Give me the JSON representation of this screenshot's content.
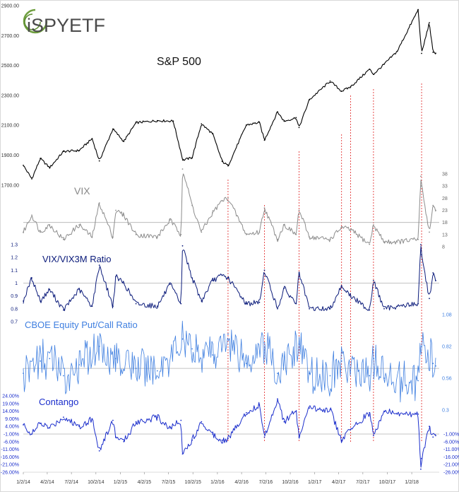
{
  "logo": {
    "text": "iSPYETF"
  },
  "colors": {
    "sp500": "#000000",
    "vix": "#8c8c8c",
    "ratio": "#0a1a7a",
    "putcall": "#3f7fe0",
    "contango": "#1b2ecc",
    "marker": "#e02020",
    "refline": "#b0b0b0"
  },
  "chart_data": {
    "type": "line",
    "x_dates": [
      "1/2/14",
      "4/2/14",
      "7/2/14",
      "10/2/14",
      "1/2/15",
      "4/2/15",
      "7/2/15",
      "10/2/15",
      "1/2/16",
      "4/2/16",
      "7/2/16",
      "10/2/16",
      "1/2/17",
      "4/2/17",
      "7/2/17",
      "10/2/17",
      "1/2/18"
    ],
    "markers": [
      "2/11/16",
      "6/27/16",
      "11/4/16",
      "4/13/17",
      "5/17/17",
      "8/11/17",
      "2/8/18"
    ],
    "panels": [
      {
        "name": "S&P 500",
        "type": "line",
        "y_ticks": [
          "2900.00",
          "2700.00",
          "2500.00",
          "2300.00",
          "2100.00",
          "1900.00",
          "1700.00"
        ],
        "ylim": [
          1600,
          2900
        ],
        "series": [
          {
            "name": "S&P 500",
            "points": [
              [
                "1/2/14",
                1832
              ],
              [
                "2/3/14",
                1742
              ],
              [
                "3/7/14",
                1878
              ],
              [
                "4/11/14",
                1816
              ],
              [
                "6/2/14",
                1925
              ],
              [
                "7/31/14",
                1931
              ],
              [
                "9/18/14",
                2011
              ],
              [
                "10/15/14",
                1862
              ],
              [
                "12/5/14",
                2075
              ],
              [
                "1/15/15",
                1992
              ],
              [
                "3/2/15",
                2117
              ],
              [
                "5/21/15",
                2131
              ],
              [
                "7/20/15",
                2128
              ],
              [
                "8/25/15",
                1867
              ],
              [
                "9/29/15",
                1884
              ],
              [
                "11/3/15",
                2109
              ],
              [
                "12/15/15",
                2043
              ],
              [
                "1/20/16",
                1859
              ],
              [
                "2/11/16",
                1829
              ],
              [
                "4/20/16",
                2102
              ],
              [
                "6/8/16",
                2119
              ],
              [
                "6/27/16",
                2000
              ],
              [
                "8/15/16",
                2190
              ],
              [
                "9/9/16",
                2127
              ],
              [
                "10/24/16",
                2151
              ],
              [
                "11/4/16",
                2085
              ],
              [
                "12/13/16",
                2271
              ],
              [
                "3/1/17",
                2395
              ],
              [
                "4/13/17",
                2328
              ],
              [
                "5/17/17",
                2357
              ],
              [
                "7/27/17",
                2475
              ],
              [
                "8/11/17",
                2441
              ],
              [
                "9/20/17",
                2508
              ],
              [
                "11/8/17",
                2594
              ],
              [
                "1/26/18",
                2873
              ],
              [
                "2/8/18",
                2581
              ],
              [
                "3/9/18",
                2786
              ],
              [
                "3/23/18",
                2588
              ],
              [
                "4/2/18",
                2582
              ]
            ]
          }
        ]
      },
      {
        "name": "VIX",
        "type": "line",
        "y_ticks": [
          "38",
          "33",
          "28",
          "23",
          "18",
          "13",
          "8"
        ],
        "ylim": [
          8,
          38
        ],
        "series": [
          {
            "name": "VIX",
            "points": [
              [
                "1/2/14",
                14
              ],
              [
                "2/3/14",
                21
              ],
              [
                "3/7/14",
                14
              ],
              [
                "4/11/14",
                17
              ],
              [
                "6/2/14",
                11
              ],
              [
                "7/31/14",
                17
              ],
              [
                "9/18/14",
                12
              ],
              [
                "10/15/14",
                26
              ],
              [
                "12/5/14",
                12
              ],
              [
                "12/16/14",
                23
              ],
              [
                "1/15/15",
                21
              ],
              [
                "3/2/15",
                13
              ],
              [
                "5/21/15",
                12
              ],
              [
                "7/8/15",
                19
              ],
              [
                "8/18/15",
                13
              ],
              [
                "8/24/15",
                40
              ],
              [
                "9/29/15",
                25
              ],
              [
                "11/3/15",
                14
              ],
              [
                "12/15/15",
                22
              ],
              [
                "1/20/16",
                27
              ],
              [
                "2/11/16",
                28
              ],
              [
                "4/20/16",
                13
              ],
              [
                "6/8/16",
                14
              ],
              [
                "6/27/16",
                24
              ],
              [
                "8/15/16",
                11
              ],
              [
                "9/9/16",
                17
              ],
              [
                "10/24/16",
                13
              ],
              [
                "11/4/16",
                23
              ],
              [
                "12/13/16",
                12
              ],
              [
                "3/1/17",
                11
              ],
              [
                "4/13/17",
                16
              ],
              [
                "5/17/17",
                15
              ],
              [
                "7/27/17",
                9
              ],
              [
                "8/11/17",
                17
              ],
              [
                "9/20/17",
                10
              ],
              [
                "11/8/17",
                10
              ],
              [
                "1/26/18",
                11
              ],
              [
                "2/5/18",
                37
              ],
              [
                "2/8/18",
                33
              ],
              [
                "3/9/18",
                14
              ],
              [
                "3/23/18",
                25
              ],
              [
                "4/2/18",
                23
              ]
            ]
          }
        ],
        "reference": 18
      },
      {
        "name": "VIX/VIX3M Ratio",
        "type": "line",
        "y_ticks": [
          "1.3",
          "1.2",
          "1.1",
          "1",
          "0.9",
          "0.8",
          "0.7"
        ],
        "ylim": [
          0.7,
          1.3
        ],
        "series": [
          {
            "name": "VIX/VIX3M Ratio",
            "points": [
              [
                "1/2/14",
                0.86
              ],
              [
                "2/3/14",
                1.04
              ],
              [
                "3/7/14",
                0.86
              ],
              [
                "4/11/14",
                0.95
              ],
              [
                "6/2/14",
                0.79
              ],
              [
                "7/31/14",
                0.95
              ],
              [
                "9/18/14",
                0.82
              ],
              [
                "10/15/14",
                1.14
              ],
              [
                "12/5/14",
                0.82
              ],
              [
                "12/16/14",
                1.05
              ],
              [
                "1/15/15",
                1.0
              ],
              [
                "3/2/15",
                0.84
              ],
              [
                "5/21/15",
                0.82
              ],
              [
                "7/8/15",
                0.99
              ],
              [
                "8/18/15",
                0.84
              ],
              [
                "8/24/15",
                1.29
              ],
              [
                "9/29/15",
                1.04
              ],
              [
                "11/3/15",
                0.86
              ],
              [
                "12/15/15",
                1.02
              ],
              [
                "1/20/16",
                1.06
              ],
              [
                "2/11/16",
                1.04
              ],
              [
                "4/20/16",
                0.84
              ],
              [
                "6/8/16",
                0.85
              ],
              [
                "6/27/16",
                1.1
              ],
              [
                "8/15/16",
                0.8
              ],
              [
                "9/9/16",
                0.96
              ],
              [
                "10/24/16",
                0.84
              ],
              [
                "11/4/16",
                1.08
              ],
              [
                "12/13/16",
                0.8
              ],
              [
                "3/1/17",
                0.8
              ],
              [
                "4/13/17",
                0.98
              ],
              [
                "5/17/17",
                0.9
              ],
              [
                "7/27/17",
                0.79
              ],
              [
                "8/11/17",
                1.02
              ],
              [
                "9/20/17",
                0.8
              ],
              [
                "11/8/17",
                0.82
              ],
              [
                "1/26/18",
                0.84
              ],
              [
                "2/5/18",
                1.3
              ],
              [
                "2/8/18",
                1.22
              ],
              [
                "3/9/18",
                0.88
              ],
              [
                "3/23/18",
                1.08
              ],
              [
                "4/2/18",
                1.02
              ]
            ]
          }
        ],
        "reference": 1.0
      },
      {
        "name": "CBOE Equity Put/Call Ratio",
        "type": "line",
        "y_ticks": [
          "1.08",
          "0.82",
          "0.56",
          "0.3"
        ],
        "ylim": [
          0.3,
          1.08
        ],
        "series": [
          {
            "name": "CBOE Equity Put/Call Ratio",
            "points": [
              [
                "1/2/14",
                0.6
              ],
              [
                "3/7/14",
                0.7
              ],
              [
                "4/11/14",
                0.72
              ],
              [
                "6/2/14",
                0.58
              ],
              [
                "7/31/14",
                0.67
              ],
              [
                "10/15/14",
                0.82
              ],
              [
                "12/16/14",
                0.72
              ],
              [
                "3/2/15",
                0.64
              ],
              [
                "5/21/15",
                0.62
              ],
              [
                "8/24/15",
                0.88
              ],
              [
                "9/29/15",
                0.8
              ],
              [
                "12/15/15",
                0.75
              ],
              [
                "2/11/16",
                0.92
              ],
              [
                "4/20/16",
                0.68
              ],
              [
                "6/27/16",
                0.85
              ],
              [
                "8/15/16",
                0.6
              ],
              [
                "11/4/16",
                0.84
              ],
              [
                "12/13/16",
                0.6
              ],
              [
                "3/1/17",
                0.58
              ],
              [
                "4/13/17",
                0.7
              ],
              [
                "7/27/17",
                0.58
              ],
              [
                "8/11/17",
                0.72
              ],
              [
                "9/20/17",
                0.56
              ],
              [
                "1/26/18",
                0.54
              ],
              [
                "2/8/18",
                0.82
              ],
              [
                "3/23/18",
                0.68
              ],
              [
                "4/2/18",
                0.66
              ]
            ]
          }
        ],
        "reference": 0.64
      },
      {
        "name": "Contango",
        "type": "line",
        "y_ticks": [
          "24.00%",
          "19.00%",
          "14.00%",
          "9.00%",
          "4.00%",
          "-1.00%",
          "-6.00%",
          "-11.00%",
          "-16.00%",
          "-21.00%",
          "-26.00%"
        ],
        "y_ticks_right": [
          "-1.00%",
          "-6.00%",
          "-11.00%",
          "-16.00%",
          "-21.00%",
          "-26.00%"
        ],
        "ylim": [
          -26,
          24
        ],
        "series": [
          {
            "name": "Contango",
            "points": [
              [
                "1/2/14",
                5
              ],
              [
                "2/3/14",
                -1
              ],
              [
                "3/7/14",
                6
              ],
              [
                "4/11/14",
                3
              ],
              [
                "6/2/14",
                10
              ],
              [
                "7/31/14",
                4
              ],
              [
                "9/18/14",
                9
              ],
              [
                "10/15/14",
                -12
              ],
              [
                "12/5/14",
                8
              ],
              [
                "12/16/14",
                -3
              ],
              [
                "1/15/15",
                -6
              ],
              [
                "3/2/15",
                7
              ],
              [
                "5/21/15",
                10
              ],
              [
                "7/8/15",
                3
              ],
              [
                "8/18/15",
                8
              ],
              [
                "8/24/15",
                -14
              ],
              [
                "9/29/15",
                -5
              ],
              [
                "11/3/15",
                7
              ],
              [
                "12/15/15",
                -1
              ],
              [
                "1/20/16",
                -5
              ],
              [
                "2/11/16",
                -4
              ],
              [
                "4/20/16",
                13
              ],
              [
                "6/8/16",
                18
              ],
              [
                "6/27/16",
                -3
              ],
              [
                "8/15/16",
                22
              ],
              [
                "9/9/16",
                7
              ],
              [
                "10/24/16",
                14
              ],
              [
                "11/4/16",
                -3
              ],
              [
                "12/13/16",
                16
              ],
              [
                "3/1/17",
                15
              ],
              [
                "4/13/17",
                -5
              ],
              [
                "5/17/17",
                2
              ],
              [
                "7/27/17",
                13
              ],
              [
                "8/11/17",
                -2
              ],
              [
                "9/20/17",
                14
              ],
              [
                "11/8/17",
                12
              ],
              [
                "1/26/18",
                12
              ],
              [
                "2/5/18",
                -24
              ],
              [
                "2/8/18",
                -17
              ],
              [
                "3/9/18",
                4
              ],
              [
                "3/23/18",
                -3
              ],
              [
                "4/2/18",
                -2
              ]
            ]
          }
        ],
        "reference": -1
      }
    ]
  }
}
